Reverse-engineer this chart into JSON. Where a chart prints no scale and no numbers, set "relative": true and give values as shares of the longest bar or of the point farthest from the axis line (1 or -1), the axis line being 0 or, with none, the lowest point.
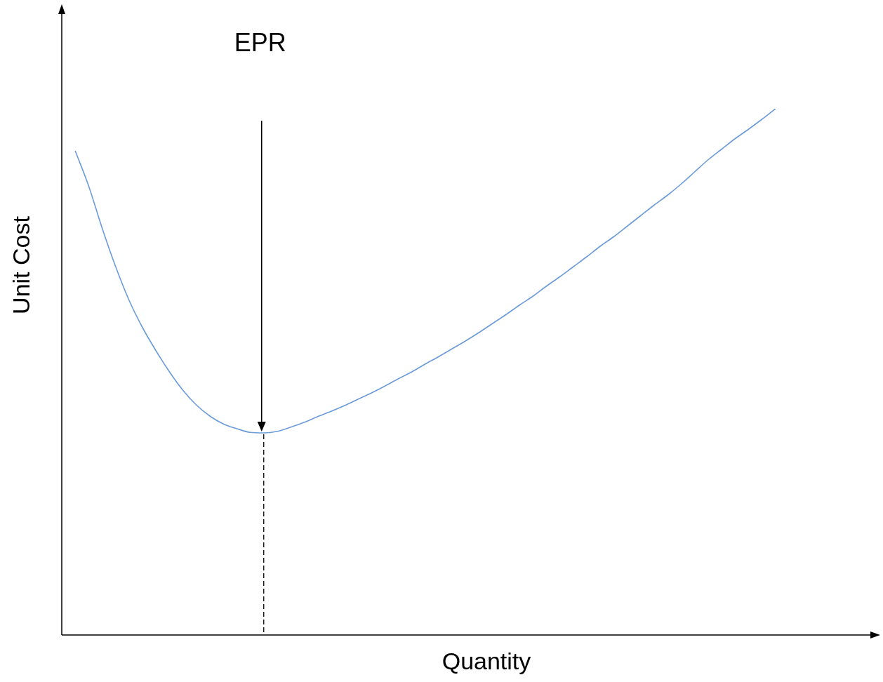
{
  "chart_data": {
    "type": "line",
    "relative": true,
    "xlabel": "Quantity",
    "ylabel": "Unit Cost",
    "marker": "none",
    "annotations": [
      "EPR"
    ],
    "categories": [
      null,
      null,
      null,
      null,
      null,
      null,
      null,
      null,
      null,
      null,
      null,
      null,
      null,
      null,
      null,
      null,
      null,
      null,
      null,
      null,
      null,
      null,
      null,
      null,
      null,
      null,
      null,
      null,
      null,
      null,
      null,
      null,
      null,
      null,
      null,
      null,
      null,
      null,
      null,
      null,
      null,
      null,
      null,
      null,
      null,
      null,
      null,
      null,
      null,
      null,
      null,
      null,
      null,
      null,
      null,
      null,
      null,
      null,
      null,
      null,
      null
    ],
    "series": [
      {
        "color": "#6b9bd8",
        "values": [
          null,
          0.92,
          0.853,
          0.773,
          0.7,
          0.636,
          0.584,
          0.54,
          0.5,
          0.465,
          0.437,
          0.416,
          0.401,
          0.392,
          0.385,
          0.384,
          0.387,
          0.395,
          0.404,
          0.415,
          0.425,
          0.436,
          0.448,
          0.46,
          0.473,
          0.487,
          0.5,
          0.515,
          0.529,
          0.544,
          0.559,
          0.575,
          0.592,
          0.609,
          0.627,
          0.644,
          0.663,
          0.681,
          0.7,
          0.719,
          0.739,
          0.757,
          0.777,
          0.797,
          0.817,
          0.836,
          0.857,
          0.88,
          0.903,
          0.923,
          0.943,
          0.961,
          0.98,
          1.0,
          null,
          null,
          null,
          null,
          null,
          null,
          null
        ]
      }
    ]
  }
}
